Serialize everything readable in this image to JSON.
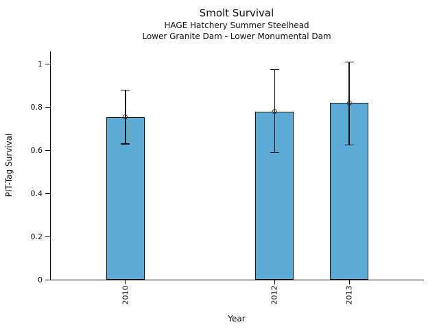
{
  "title": "Smolt Survival",
  "subtitle_line1": "HAGE Hatchery Summer Steelhead",
  "subtitle_line2": "Lower Granite Dam - Lower Monumental Dam",
  "chart_data": {
    "type": "bar",
    "title": "Smolt Survival",
    "subtitles": [
      "HAGE Hatchery Summer Steelhead",
      "Lower Granite Dam - Lower Monumental Dam"
    ],
    "xlabel": "Year",
    "ylabel": "PIT-Tag Survival",
    "categories": [
      "2010",
      "2012",
      "2013"
    ],
    "x": [
      2010,
      2012,
      2013
    ],
    "values": [
      0.755,
      0.78,
      0.82
    ],
    "error_low": [
      0.63,
      0.59,
      0.625
    ],
    "error_high": [
      0.88,
      0.975,
      1.01
    ],
    "xlim": [
      2009,
      2014
    ],
    "ylim": [
      0,
      1.06
    ],
    "yticks": [
      0,
      0.2,
      0.4,
      0.6,
      0.8,
      1
    ],
    "ytick_labels": [
      "0",
      "0.2",
      "0.4",
      "0.6",
      "0.8",
      "1"
    ],
    "bar_color": "#5CABD6",
    "bar_edge_color": "#111111",
    "error_bar_color": "#111111",
    "marker": "open-circle",
    "grid": false
  }
}
